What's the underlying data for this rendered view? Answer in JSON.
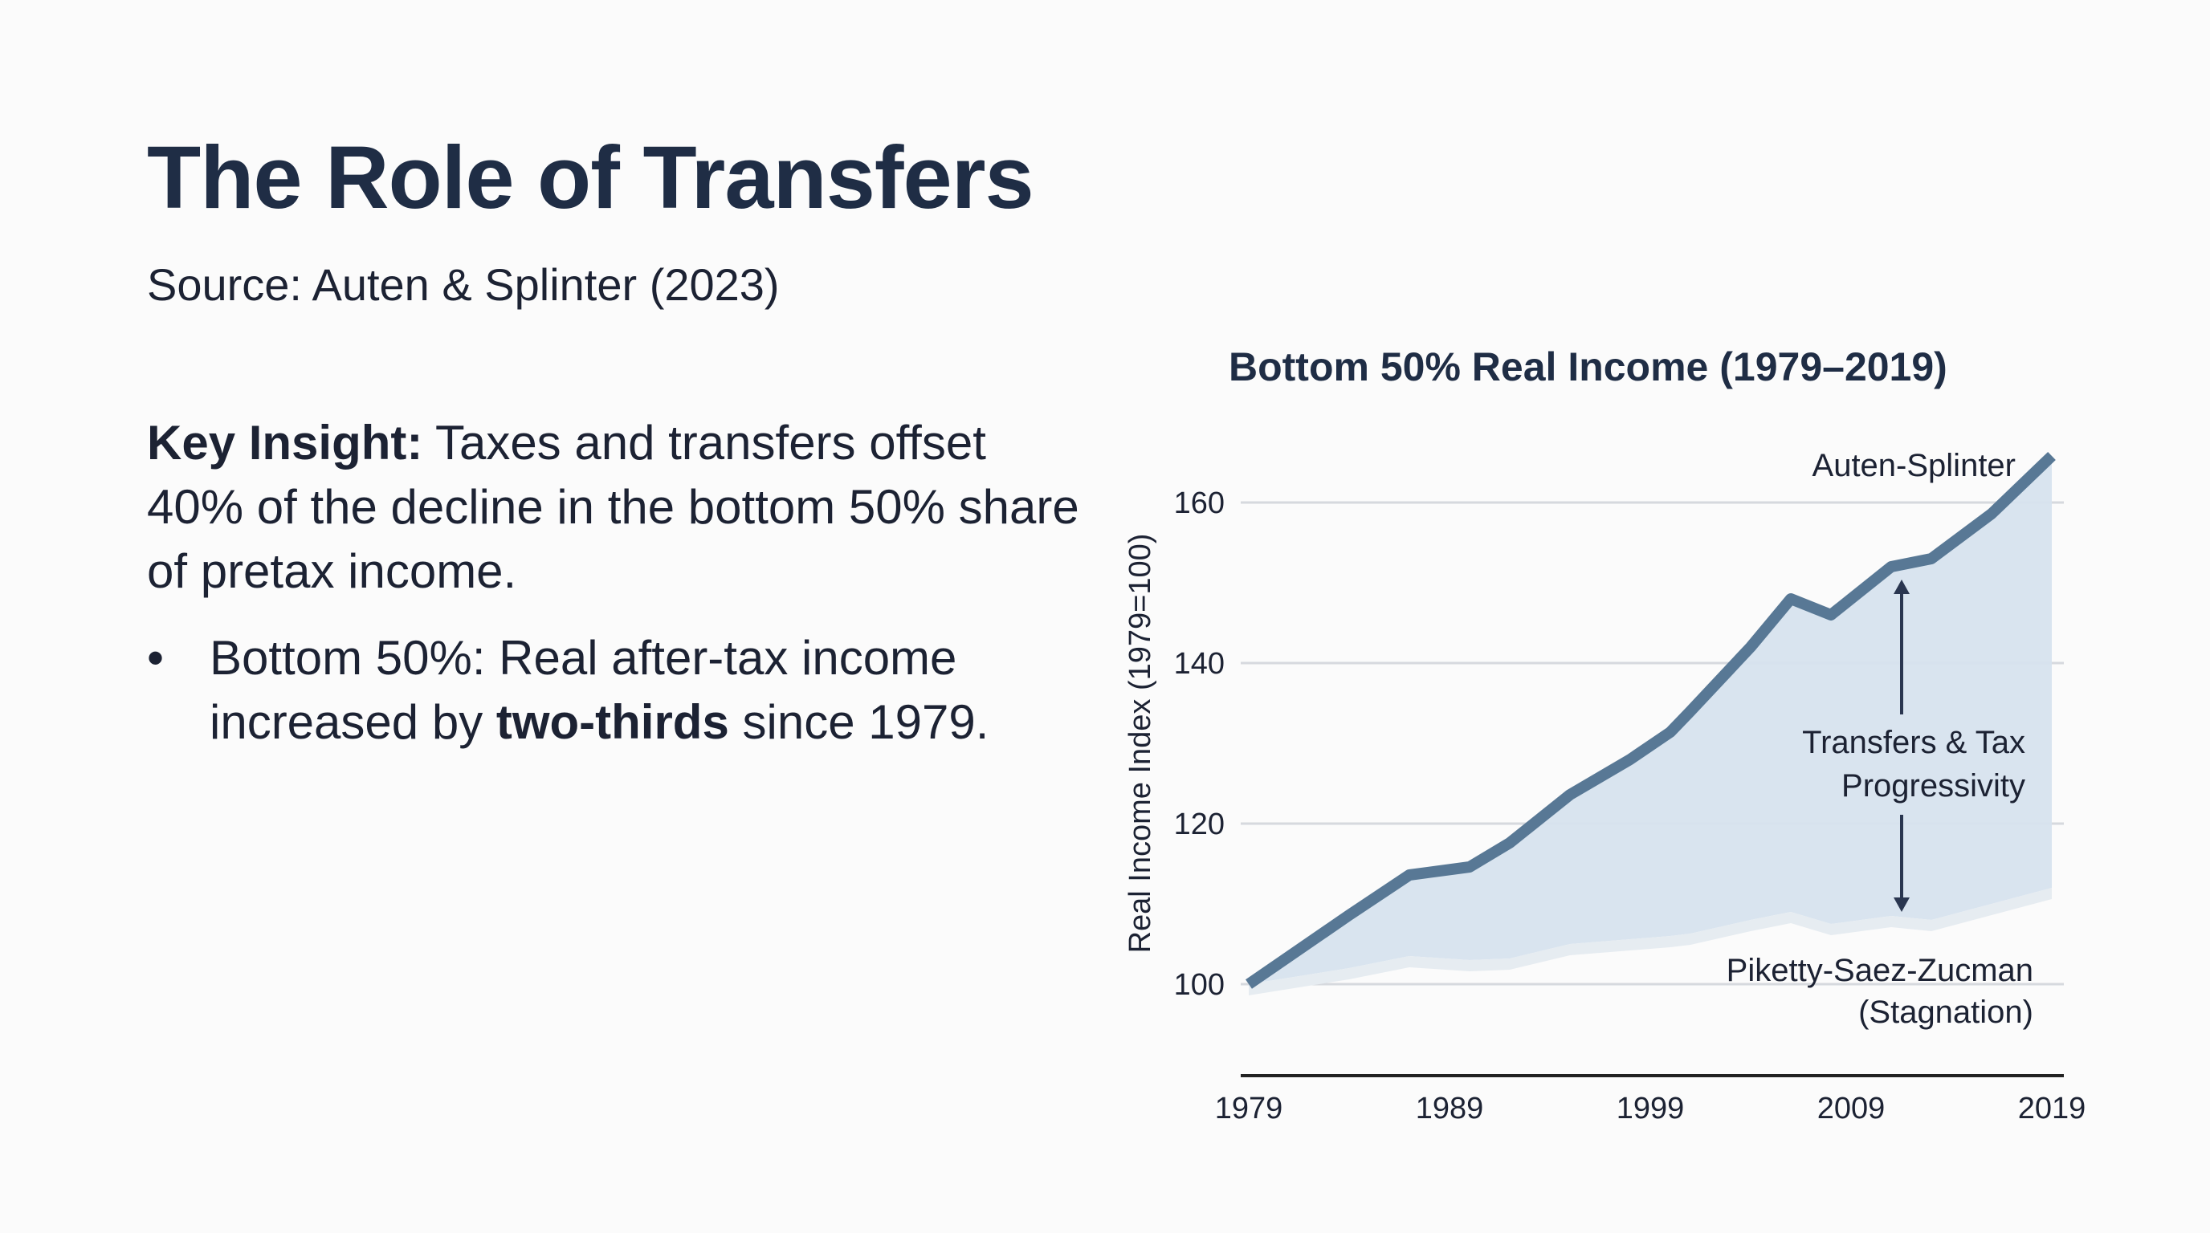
{
  "slide": {
    "title": "The Role of Transfers",
    "subtitle": "Source: Auten & Splinter (2023)",
    "insight": {
      "label": "Key Insight:",
      "text": " Taxes and transfers offset 40% of the decline in the bottom 50% share of pretax income."
    },
    "bullet": {
      "marker": "•",
      "text_before": "Bottom 50%: Real after-tax income increased by ",
      "bold": "two-thirds",
      "text_after": " since 1979."
    }
  },
  "colors": {
    "text_dark": "#1f2d45",
    "line": "#587895",
    "fill": "#d7e3ee",
    "fill_lower": "#e6ecf1",
    "grid": "#d6d9de",
    "axis": "#222222"
  },
  "chart_data": {
    "type": "area",
    "title": "Bottom 50% Real Income (1979–2019)",
    "xlabel": "",
    "ylabel": "Real Income Index (1979=100)",
    "x_ticks": [
      "1979",
      "1989",
      "1999",
      "2009",
      "2019"
    ],
    "y_ticks": [
      100,
      120,
      140,
      160
    ],
    "xlim": [
      1979,
      2019
    ],
    "ylim": [
      90,
      170
    ],
    "grid": true,
    "series": [
      {
        "name": "Auten-Splinter",
        "x": [
          1979,
          1984,
          1987,
          1990,
          1992,
          1995,
          1998,
          2000,
          2001,
          2004,
          2006,
          2008,
          2011,
          2013,
          2016,
          2019
        ],
        "values": [
          100,
          108.6,
          113.6,
          114.6,
          117.6,
          123.6,
          128,
          131.4,
          134,
          142,
          148,
          146,
          152,
          153,
          158.6,
          165.8
        ]
      },
      {
        "name": "Piketty-Saez-Zucman (Stagnation)",
        "x": [
          1979,
          1984,
          1987,
          1990,
          1992,
          1995,
          1998,
          2000,
          2001,
          2004,
          2006,
          2008,
          2011,
          2013,
          2016,
          2019
        ],
        "values": [
          100,
          102,
          103.5,
          103,
          103.2,
          105,
          105.6,
          106,
          106.3,
          108,
          109,
          107.5,
          108.5,
          108,
          110,
          112
        ]
      }
    ],
    "annotations": [
      {
        "text": "Auten-Splinter",
        "x": 2019,
        "y": 166
      },
      {
        "text": "Transfers & Tax",
        "line2": "Progressivity",
        "x": 2012,
        "y_from": 110,
        "y_to": 152,
        "type": "double-arrow"
      },
      {
        "text": "Piketty-Saez-Zucman",
        "line2": "(Stagnation)",
        "x": 2019,
        "y": 100
      }
    ]
  }
}
